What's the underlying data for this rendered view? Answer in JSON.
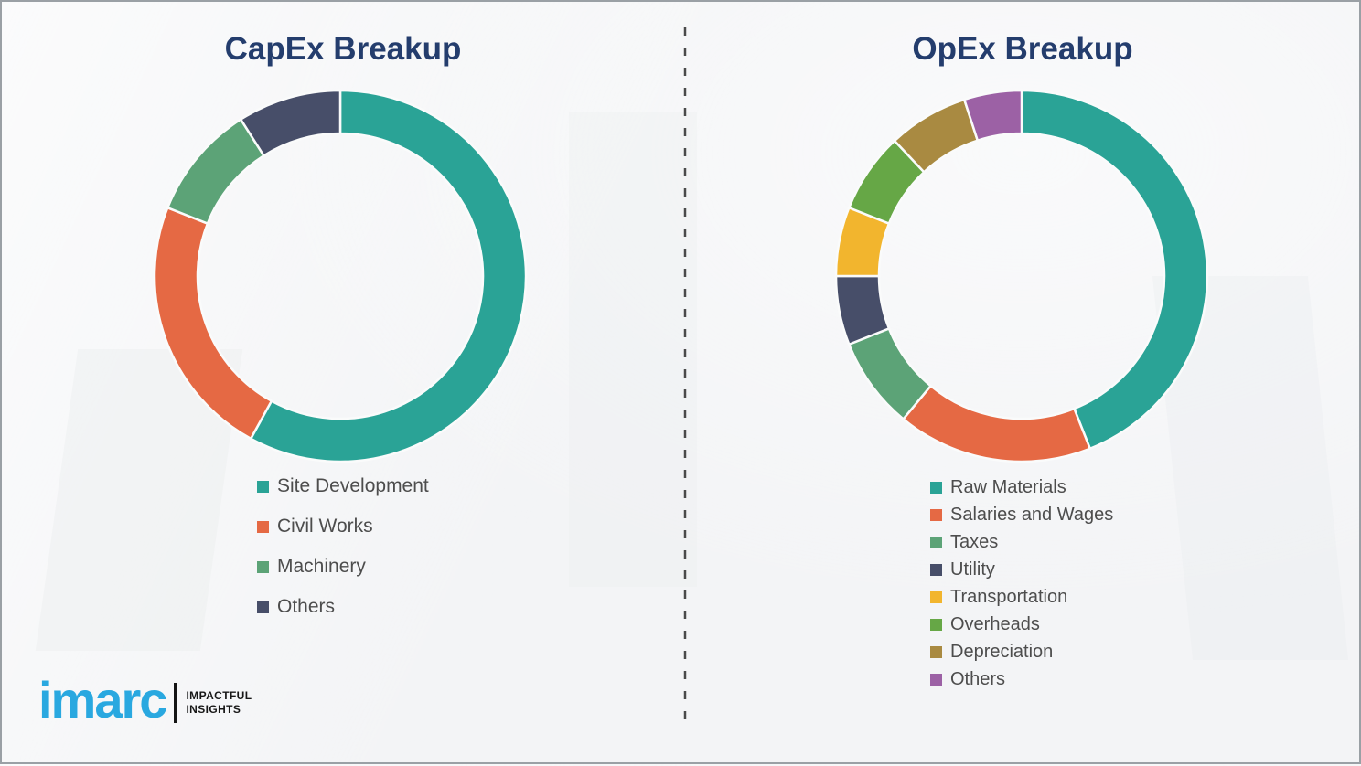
{
  "theme": {
    "background": "#f3f4f6",
    "page_border": "#9aa0a5",
    "title_color": "#243d6d",
    "legend_text_color": "#4d4d4d",
    "divider_color": "#4a4a4a",
    "segment_gap_color": "#fafbfb",
    "brand_blue": "#29a8e0",
    "brand_black": "#141414"
  },
  "chart_data": [
    {
      "type": "pie",
      "variant": "donut",
      "title": "CapEx Breakup",
      "categories": [
        "Site Development",
        "Civil Works",
        "Machinery",
        "Others"
      ],
      "values": [
        58,
        23,
        10,
        9
      ],
      "colors": [
        "#2aa396",
        "#e56944",
        "#5ca377",
        "#474e69"
      ],
      "start_angle_deg": 0,
      "direction": "clockwise",
      "legend_position": "below-left",
      "data_labels": "none"
    },
    {
      "type": "pie",
      "variant": "donut",
      "title": "OpEx Breakup",
      "categories": [
        "Raw Materials",
        "Salaries and Wages",
        "Taxes",
        "Utility",
        "Transportation",
        "Overheads",
        "Depreciation",
        "Others"
      ],
      "values": [
        44,
        17,
        8,
        6,
        6,
        7,
        7,
        5
      ],
      "colors": [
        "#2aa396",
        "#e56944",
        "#5ca377",
        "#474e69",
        "#f2b52e",
        "#66a746",
        "#a98a41",
        "#9c61a5"
      ],
      "start_angle_deg": 0,
      "direction": "clockwise",
      "legend_position": "below-left",
      "data_labels": "none"
    }
  ],
  "logo": {
    "brand": "imarc",
    "tagline_line1": "IMPACTFUL",
    "tagline_line2": "INSIGHTS"
  }
}
